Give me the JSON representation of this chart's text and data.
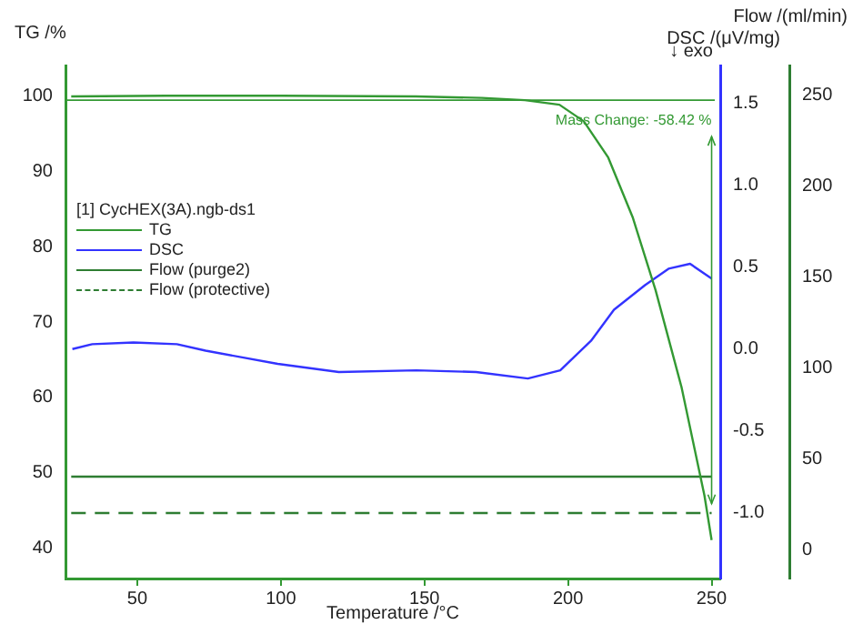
{
  "chart_data": {
    "type": "line",
    "xlabel": "Temperature /°C",
    "ylabel": "TG /%",
    "y2label": "DSC /(μV/mg)",
    "y3label": "Flow /(ml/min)",
    "legend_title": "[1] CycHEX(3A).ngb-ds1",
    "legend": "top left",
    "grid": false,
    "marker": "none",
    "xlim": [
      25,
      253
    ],
    "xticks": [
      50,
      100,
      150,
      200,
      250
    ],
    "ylim": [
      36,
      104
    ],
    "yticks": [
      40,
      50,
      60,
      70,
      80,
      90,
      100
    ],
    "y2lim": [
      -1.4,
      1.73
    ],
    "y2ticks": [
      {
        "value": -1,
        "label": "-1.0"
      },
      -0.5,
      {
        "value": 0,
        "label": "0.0"
      },
      0.5,
      {
        "value": 1,
        "label": "1.0"
      },
      1.5
    ],
    "y3lim": [
      -16,
      266
    ],
    "y3ticks": [
      0,
      50,
      100,
      150,
      200,
      250
    ],
    "series": [
      {
        "name": "TG",
        "color": "#339933",
        "x": [
          27,
          60,
          100,
          147,
          170,
          185,
          197,
          205.5,
          214,
          222.5,
          230.5,
          239.5,
          247.5,
          250
        ],
        "values": [
          99.9,
          100,
          100,
          99.9,
          99.7,
          99.4,
          98.8,
          96.6,
          91.8,
          83.9,
          74.2,
          61.4,
          47,
          41.1
        ]
      },
      {
        "name": "DSC",
        "color": "#3333ff",
        "axis": "y2",
        "x": [
          27.4,
          34.3,
          48.7,
          63.8,
          73.8,
          98.9,
          120.2,
          147.2,
          168,
          186,
          197.3,
          208,
          216,
          226.8,
          235,
          242.5,
          250
        ],
        "values": [
          0,
          0.03,
          0.04,
          0.03,
          -0.01,
          -0.09,
          -0.14,
          -0.13,
          -0.14,
          -0.18,
          -0.13,
          0.05,
          0.24,
          0.39,
          0.49,
          0.52,
          0.43
        ]
      },
      {
        "name": "Flow (purge2)",
        "color": "#2e7d32",
        "axis": "y3",
        "x": [
          27,
          250
        ],
        "values": [
          40,
          40
        ]
      },
      {
        "name": "Flow (protective)",
        "color": "#2e7d32",
        "axis": "y3",
        "line_style": "dashed",
        "x": [
          27,
          250
        ],
        "values": [
          20,
          20
        ]
      }
    ],
    "ref_lines": [
      {
        "axis": "y",
        "value": 99.4,
        "color": "#339933"
      }
    ],
    "annotations": [
      "Mass Change: -58.42 %",
      "↓ exo"
    ]
  }
}
